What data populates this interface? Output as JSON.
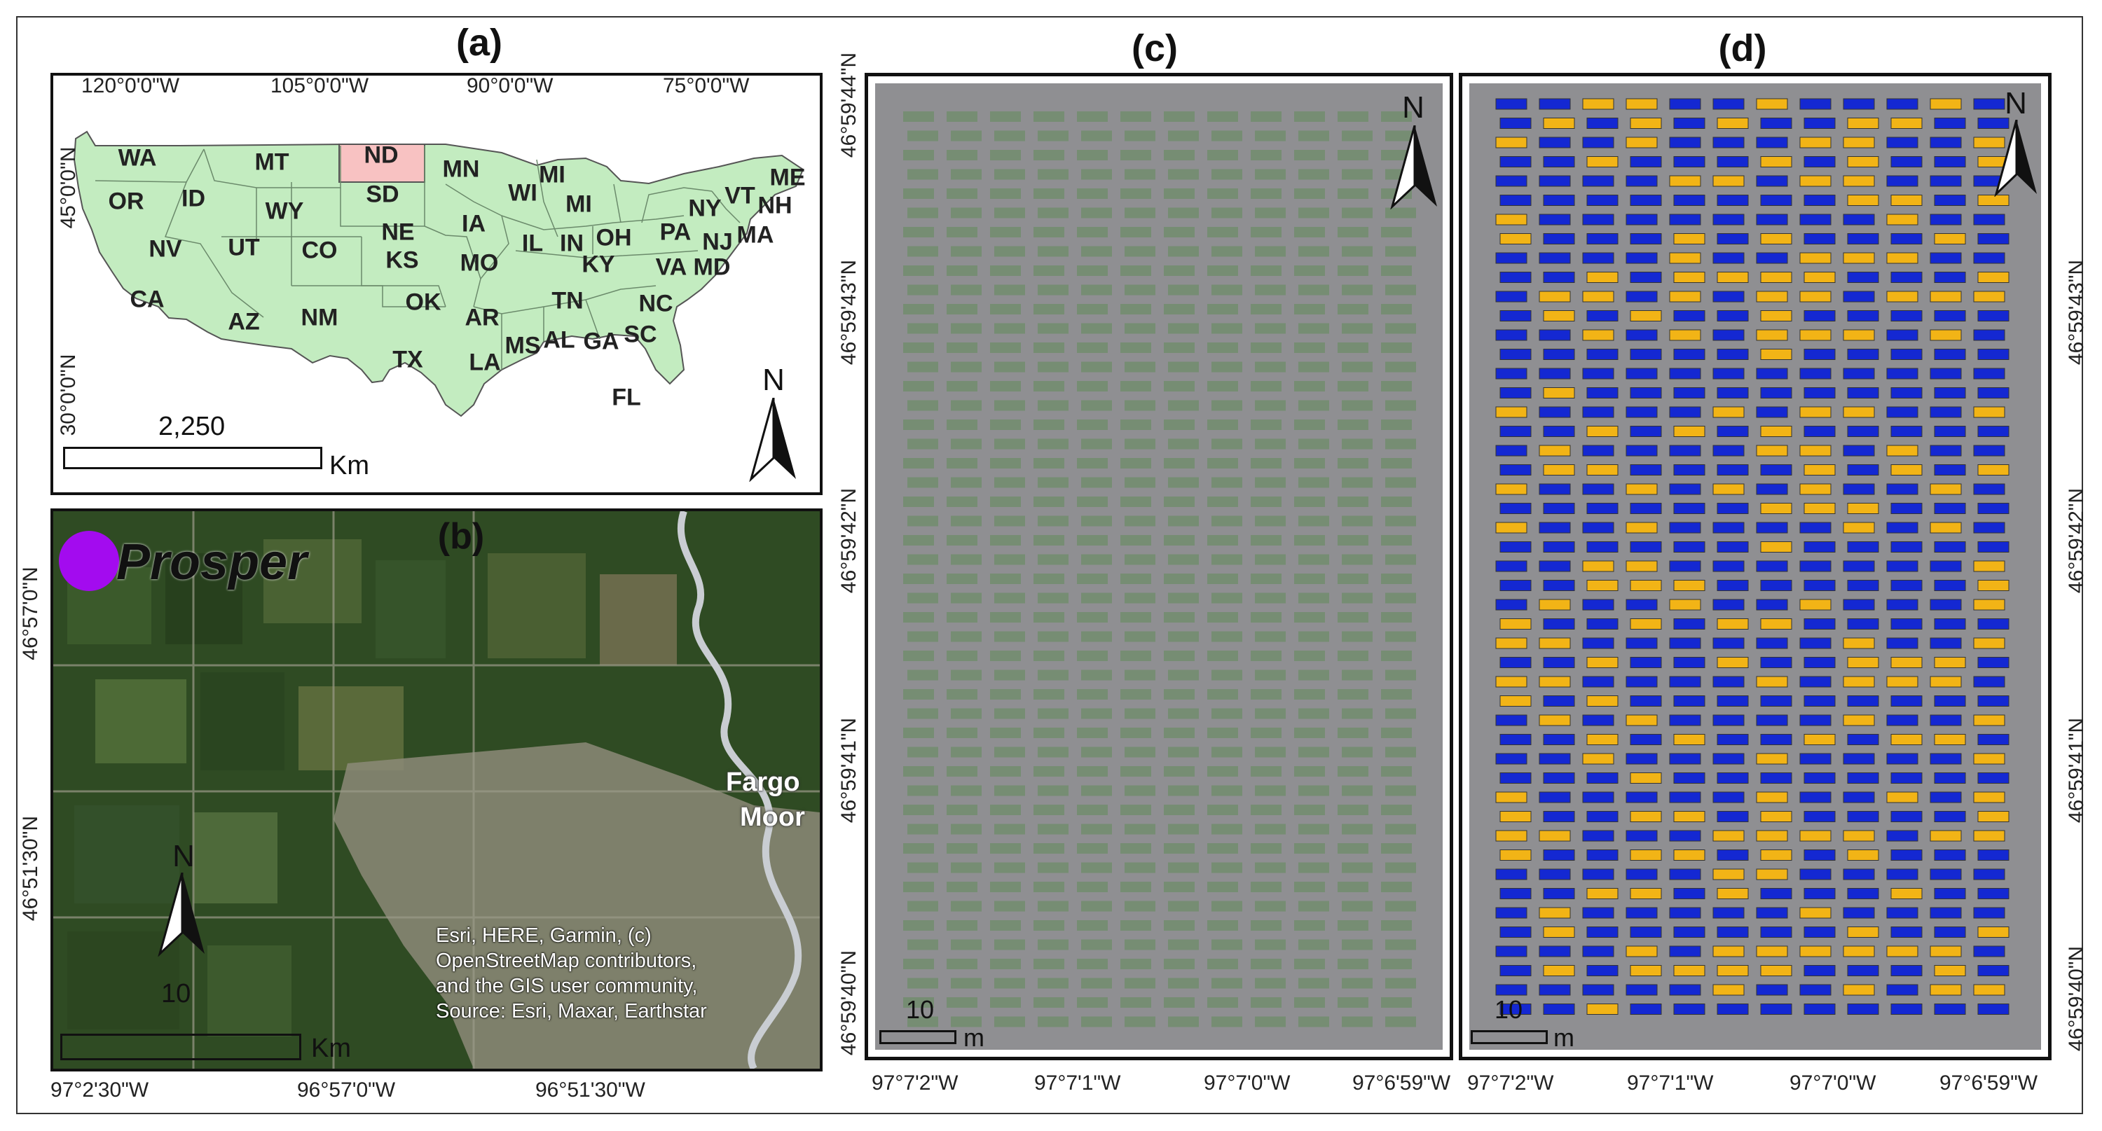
{
  "panels": {
    "a": "(a)",
    "b": "(b)",
    "c": "(c)",
    "d": "(d)"
  },
  "panel_a": {
    "top_longitudes": [
      "120°0'0\"W",
      "105°0'0\"W",
      "90°0'0\"W",
      "75°0'0\"W"
    ],
    "left_latitudes": [
      "45°0'0\"N",
      "30°0'0\"N"
    ],
    "states": [
      "WA",
      "MT",
      "ND",
      "MN",
      "ME",
      "OR",
      "ID",
      "SD",
      "WI",
      "MI",
      "VT",
      "NH",
      "WY",
      "MI",
      "NY",
      "IA",
      "NE",
      "MA",
      "NV",
      "UT",
      "CO",
      "IL",
      "IN",
      "OH",
      "PA",
      "NJ",
      "KS",
      "MO",
      "KY",
      "VA",
      "MD",
      "CA",
      "OK",
      "AR",
      "TN",
      "NC",
      "AZ",
      "NM",
      "SC",
      "TX",
      "LA",
      "MS",
      "AL",
      "GA",
      "FL"
    ],
    "highlighted_state": "ND",
    "scale_value": "2,250",
    "scale_unit": "Km",
    "north": "N"
  },
  "panel_b": {
    "site": "Prosper",
    "places": [
      "Fargo",
      "Moor"
    ],
    "left_latitudes": [
      "46°57'0\"N",
      "46°51'30\"N"
    ],
    "bottom_longitudes": [
      "97°2'30\"W",
      "96°57'0\"W",
      "96°51'30\"W"
    ],
    "attribution": [
      "Esri, HERE, Garmin, (c)",
      "OpenStreetMap contributors,",
      "and the GIS user community,",
      "Source: Esri, Maxar, Earthstar"
    ],
    "scale_value": "10",
    "scale_unit": "Km",
    "north": "N"
  },
  "panel_c": {
    "left_latitudes": [
      "46°59'44\"N",
      "46°59'43\"N",
      "46°59'42\"N",
      "46°59'41\"N",
      "46°59'40\"N"
    ],
    "bottom_longitudes": [
      "97°7'2\"W",
      "97°7'1\"W",
      "97°7'0\"W",
      "97°6'59\"W"
    ],
    "scale_value": "10",
    "scale_unit": "m",
    "north": "N"
  },
  "panel_d": {
    "right_latitudes": [
      "46°59'43\"N",
      "46°59'42\"N",
      "46°59'41\"N",
      "46°59'40\"N"
    ],
    "bottom_longitudes": [
      "97°7'2\"W",
      "97°7'1\"W",
      "97°7'0\"W",
      "97°6'59\"W"
    ],
    "scale_value": "10",
    "scale_unit": "m",
    "north": "N",
    "colors": {
      "plot_a": "#1428d2",
      "plot_b": "#f2b416"
    }
  },
  "colors": {
    "us_fill": "#c3ecc0",
    "nd_fill": "#f8c2c2",
    "satellite": "#2e4a22",
    "field": "#8f8f92",
    "marker": "#a30bef"
  }
}
